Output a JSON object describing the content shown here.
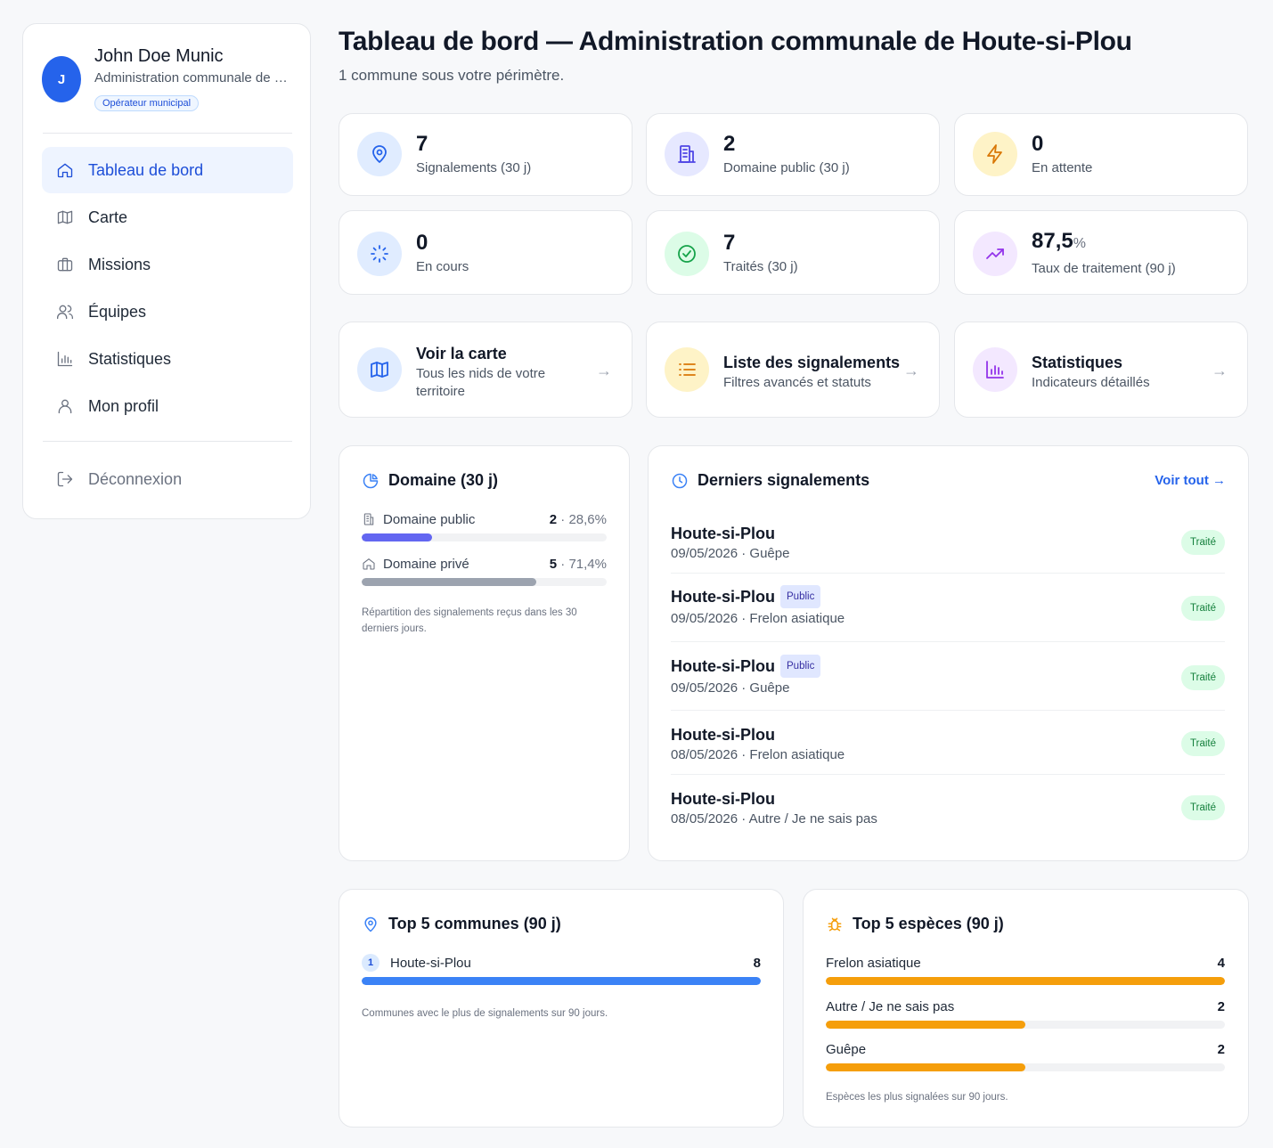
{
  "user": {
    "initial": "J",
    "name": "John Doe Munic",
    "org": "Administration communale de Houte-si-Plou",
    "role": "Opérateur municipal"
  },
  "nav": {
    "items": [
      {
        "label": "Tableau de bord",
        "icon": "home-icon",
        "active": true
      },
      {
        "label": "Carte",
        "icon": "map-icon"
      },
      {
        "label": "Missions",
        "icon": "briefcase-icon"
      },
      {
        "label": "Équipes",
        "icon": "users-icon"
      },
      {
        "label": "Statistiques",
        "icon": "bar-chart-icon"
      },
      {
        "label": "Mon profil",
        "icon": "user-icon"
      }
    ],
    "logout": "Déconnexion"
  },
  "header": {
    "title": "Tableau de bord — Administration communale de Houte-si-Plou",
    "subtitle": "1 commune sous votre périmètre."
  },
  "stats": [
    {
      "value": "7",
      "label": "Signalements (30 j)",
      "icon": "map-pin-icon",
      "color": "#2563eb",
      "bg": "#e0ecff"
    },
    {
      "value": "2",
      "label": "Domaine public (30 j)",
      "icon": "building-icon",
      "color": "#4f46e5",
      "bg": "#e6e8ff"
    },
    {
      "value": "0",
      "label": "En attente",
      "icon": "bolt-icon",
      "color": "#d97706",
      "bg": "#fef3c7"
    },
    {
      "value": "0",
      "label": "En cours",
      "icon": "loader-icon",
      "color": "#2563eb",
      "bg": "#e0ecff"
    },
    {
      "value": "7",
      "label": "Traités (30 j)",
      "icon": "check-circle-icon",
      "color": "#16a34a",
      "bg": "#dcfce7"
    },
    {
      "value": "87,5",
      "unit": "%",
      "label": "Taux de traitement (90 j)",
      "icon": "trending-up-icon",
      "color": "#9333ea",
      "bg": "#f3e8ff"
    }
  ],
  "quick_links": [
    {
      "title": "Voir la carte",
      "desc": "Tous les nids de votre territoire",
      "icon": "map-icon",
      "color": "#2563eb",
      "bg": "#e0ecff"
    },
    {
      "title": "Liste des signalements",
      "desc": "Filtres avancés et statuts",
      "icon": "list-icon",
      "color": "#d97706",
      "bg": "#fef3c7"
    },
    {
      "title": "Statistiques",
      "desc": "Indicateurs détaillés",
      "icon": "bar-chart-icon",
      "color": "#9333ea",
      "bg": "#f3e8ff"
    }
  ],
  "domain": {
    "title": "Domaine (30 j)",
    "rows": [
      {
        "label": "Domaine public",
        "count": "2",
        "pct": "28,6%",
        "fraction": 0.286,
        "color": "#6366f1",
        "icon": "building-icon"
      },
      {
        "label": "Domaine privé",
        "count": "5",
        "pct": "71,4%",
        "fraction": 0.714,
        "color": "#9ca3af",
        "icon": "home-icon"
      }
    ],
    "note": "Répartition des signalements reçus dans les 30 derniers jours."
  },
  "recent": {
    "title": "Derniers signalements",
    "see_all": "Voir tout →",
    "items": [
      {
        "name": "Houte-si-Plou",
        "public": false,
        "meta": "09/05/2026 · Guêpe",
        "status": "Traité"
      },
      {
        "name": "Houte-si-Plou",
        "public": true,
        "meta": "09/05/2026 · Frelon asiatique",
        "status": "Traité"
      },
      {
        "name": "Houte-si-Plou",
        "public": true,
        "meta": "09/05/2026 · Guêpe",
        "status": "Traité"
      },
      {
        "name": "Houte-si-Plou",
        "public": false,
        "meta": "08/05/2026 · Frelon asiatique",
        "status": "Traité"
      },
      {
        "name": "Houte-si-Plou",
        "public": false,
        "meta": "08/05/2026 · Autre / Je ne sais pas",
        "status": "Traité"
      }
    ],
    "public_label": "Public"
  },
  "top_communes": {
    "title": "Top 5 communes (90 j)",
    "rows": [
      {
        "rank": "1",
        "label": "Houte-si-Plou",
        "count": "8",
        "fraction": 1.0
      }
    ],
    "color": "#3b82f6",
    "note": "Communes avec le plus de signalements sur 90 jours."
  },
  "top_species": {
    "title": "Top 5 espèces (90 j)",
    "rows": [
      {
        "label": "Frelon asiatique",
        "count": "4",
        "fraction": 1.0
      },
      {
        "label": "Autre / Je ne sais pas",
        "count": "2",
        "fraction": 0.5
      },
      {
        "label": "Guêpe",
        "count": "2",
        "fraction": 0.5
      }
    ],
    "color": "#f59e0b",
    "note": "Espèces les plus signalées sur 90 jours."
  }
}
